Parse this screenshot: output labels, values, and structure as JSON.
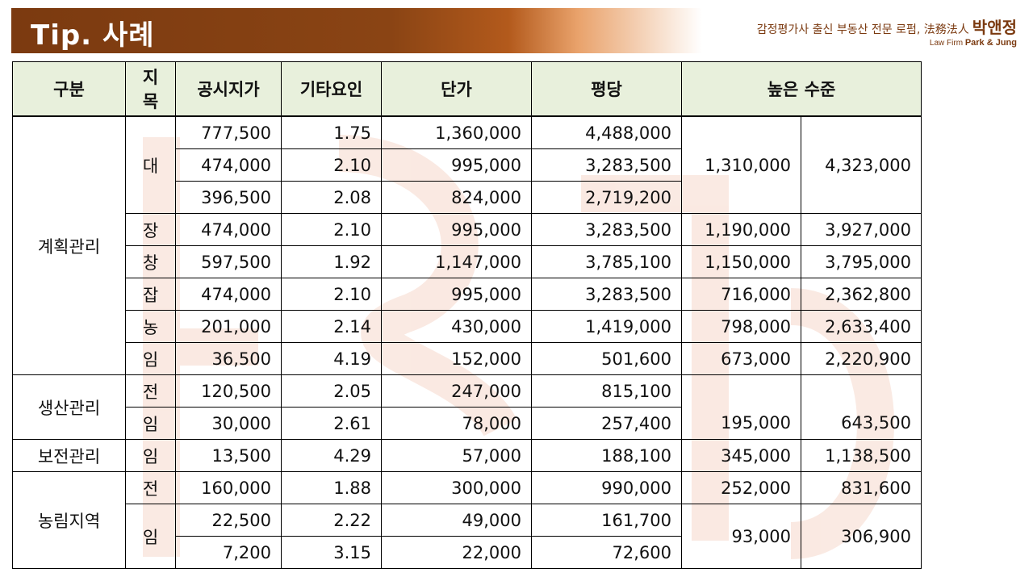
{
  "header": {
    "title": "Tip. 사례",
    "firm_tagline": "감정평가사 출신 부동산 전문 로펌, 法務法人",
    "firm_name_ko": "박앤정",
    "firm_en_prefix": "Law Firm",
    "firm_en_name": "Park & Jung"
  },
  "colors": {
    "header_brown": "#7b3a10",
    "table_header_bg": "#e8f0dc",
    "per_pyeong_blue": "#1a22e6"
  },
  "table": {
    "columns": [
      "구분",
      "지목",
      "공시지가",
      "기타요인",
      "단가",
      "평당",
      "높은 수준"
    ],
    "groups": [
      {
        "label": "계획관리",
        "rows": [
          {
            "land": "대",
            "price": "777,500",
            "factor": "1.75",
            "unit": "1,360,000",
            "pyeong": "4,488,000"
          },
          {
            "land": "",
            "price": "474,000",
            "factor": "2.10",
            "unit": "995,000",
            "pyeong": "3,283,500",
            "high1": "1,310,000",
            "high2": "4,323,000"
          },
          {
            "land": "",
            "price": "396,500",
            "factor": "2.08",
            "unit": "824,000",
            "pyeong": "2,719,200"
          },
          {
            "land": "장",
            "price": "474,000",
            "factor": "2.10",
            "unit": "995,000",
            "pyeong": "3,283,500",
            "high1": "1,190,000",
            "high2": "3,927,000"
          },
          {
            "land": "창",
            "price": "597,500",
            "factor": "1.92",
            "unit": "1,147,000",
            "pyeong": "3,785,100",
            "high1": "1,150,000",
            "high2": "3,795,000"
          },
          {
            "land": "잡",
            "price": "474,000",
            "factor": "2.10",
            "unit": "995,000",
            "pyeong": "3,283,500",
            "high1": "716,000",
            "high2": "2,362,800"
          },
          {
            "land": "농",
            "price": "201,000",
            "factor": "2.14",
            "unit": "430,000",
            "pyeong": "1,419,000",
            "high1": "798,000",
            "high2": "2,633,400"
          },
          {
            "land": "임",
            "price": "36,500",
            "factor": "4.19",
            "unit": "152,000",
            "pyeong": "501,600",
            "high1": "673,000",
            "high2": "2,220,900"
          }
        ]
      },
      {
        "label": "생산관리",
        "rows": [
          {
            "land": "전",
            "price": "120,500",
            "factor": "2.05",
            "unit": "247,000",
            "pyeong": "815,100",
            "high1": "",
            "high2": ""
          },
          {
            "land": "임",
            "price": "30,000",
            "factor": "2.61",
            "unit": "78,000",
            "pyeong": "257,400",
            "high1": "195,000",
            "high2": "643,500"
          }
        ]
      },
      {
        "label": "보전관리",
        "rows": [
          {
            "land": "임",
            "price": "13,500",
            "factor": "4.29",
            "unit": "57,000",
            "pyeong": "188,100",
            "high1": "345,000",
            "high2": "1,138,500"
          }
        ]
      },
      {
        "label": "농림지역",
        "rows": [
          {
            "land": "전",
            "price": "160,000",
            "factor": "1.88",
            "unit": "300,000",
            "pyeong": "990,000",
            "high1": "252,000",
            "high2": "831,600"
          },
          {
            "land": "임",
            "price": "22,500",
            "factor": "2.22",
            "unit": "49,000",
            "pyeong": "161,700",
            "high1": "93,000",
            "high2": "306,900"
          },
          {
            "land": "",
            "price": "7,200",
            "factor": "3.15",
            "unit": "22,000",
            "pyeong": "72,600"
          }
        ]
      }
    ]
  }
}
